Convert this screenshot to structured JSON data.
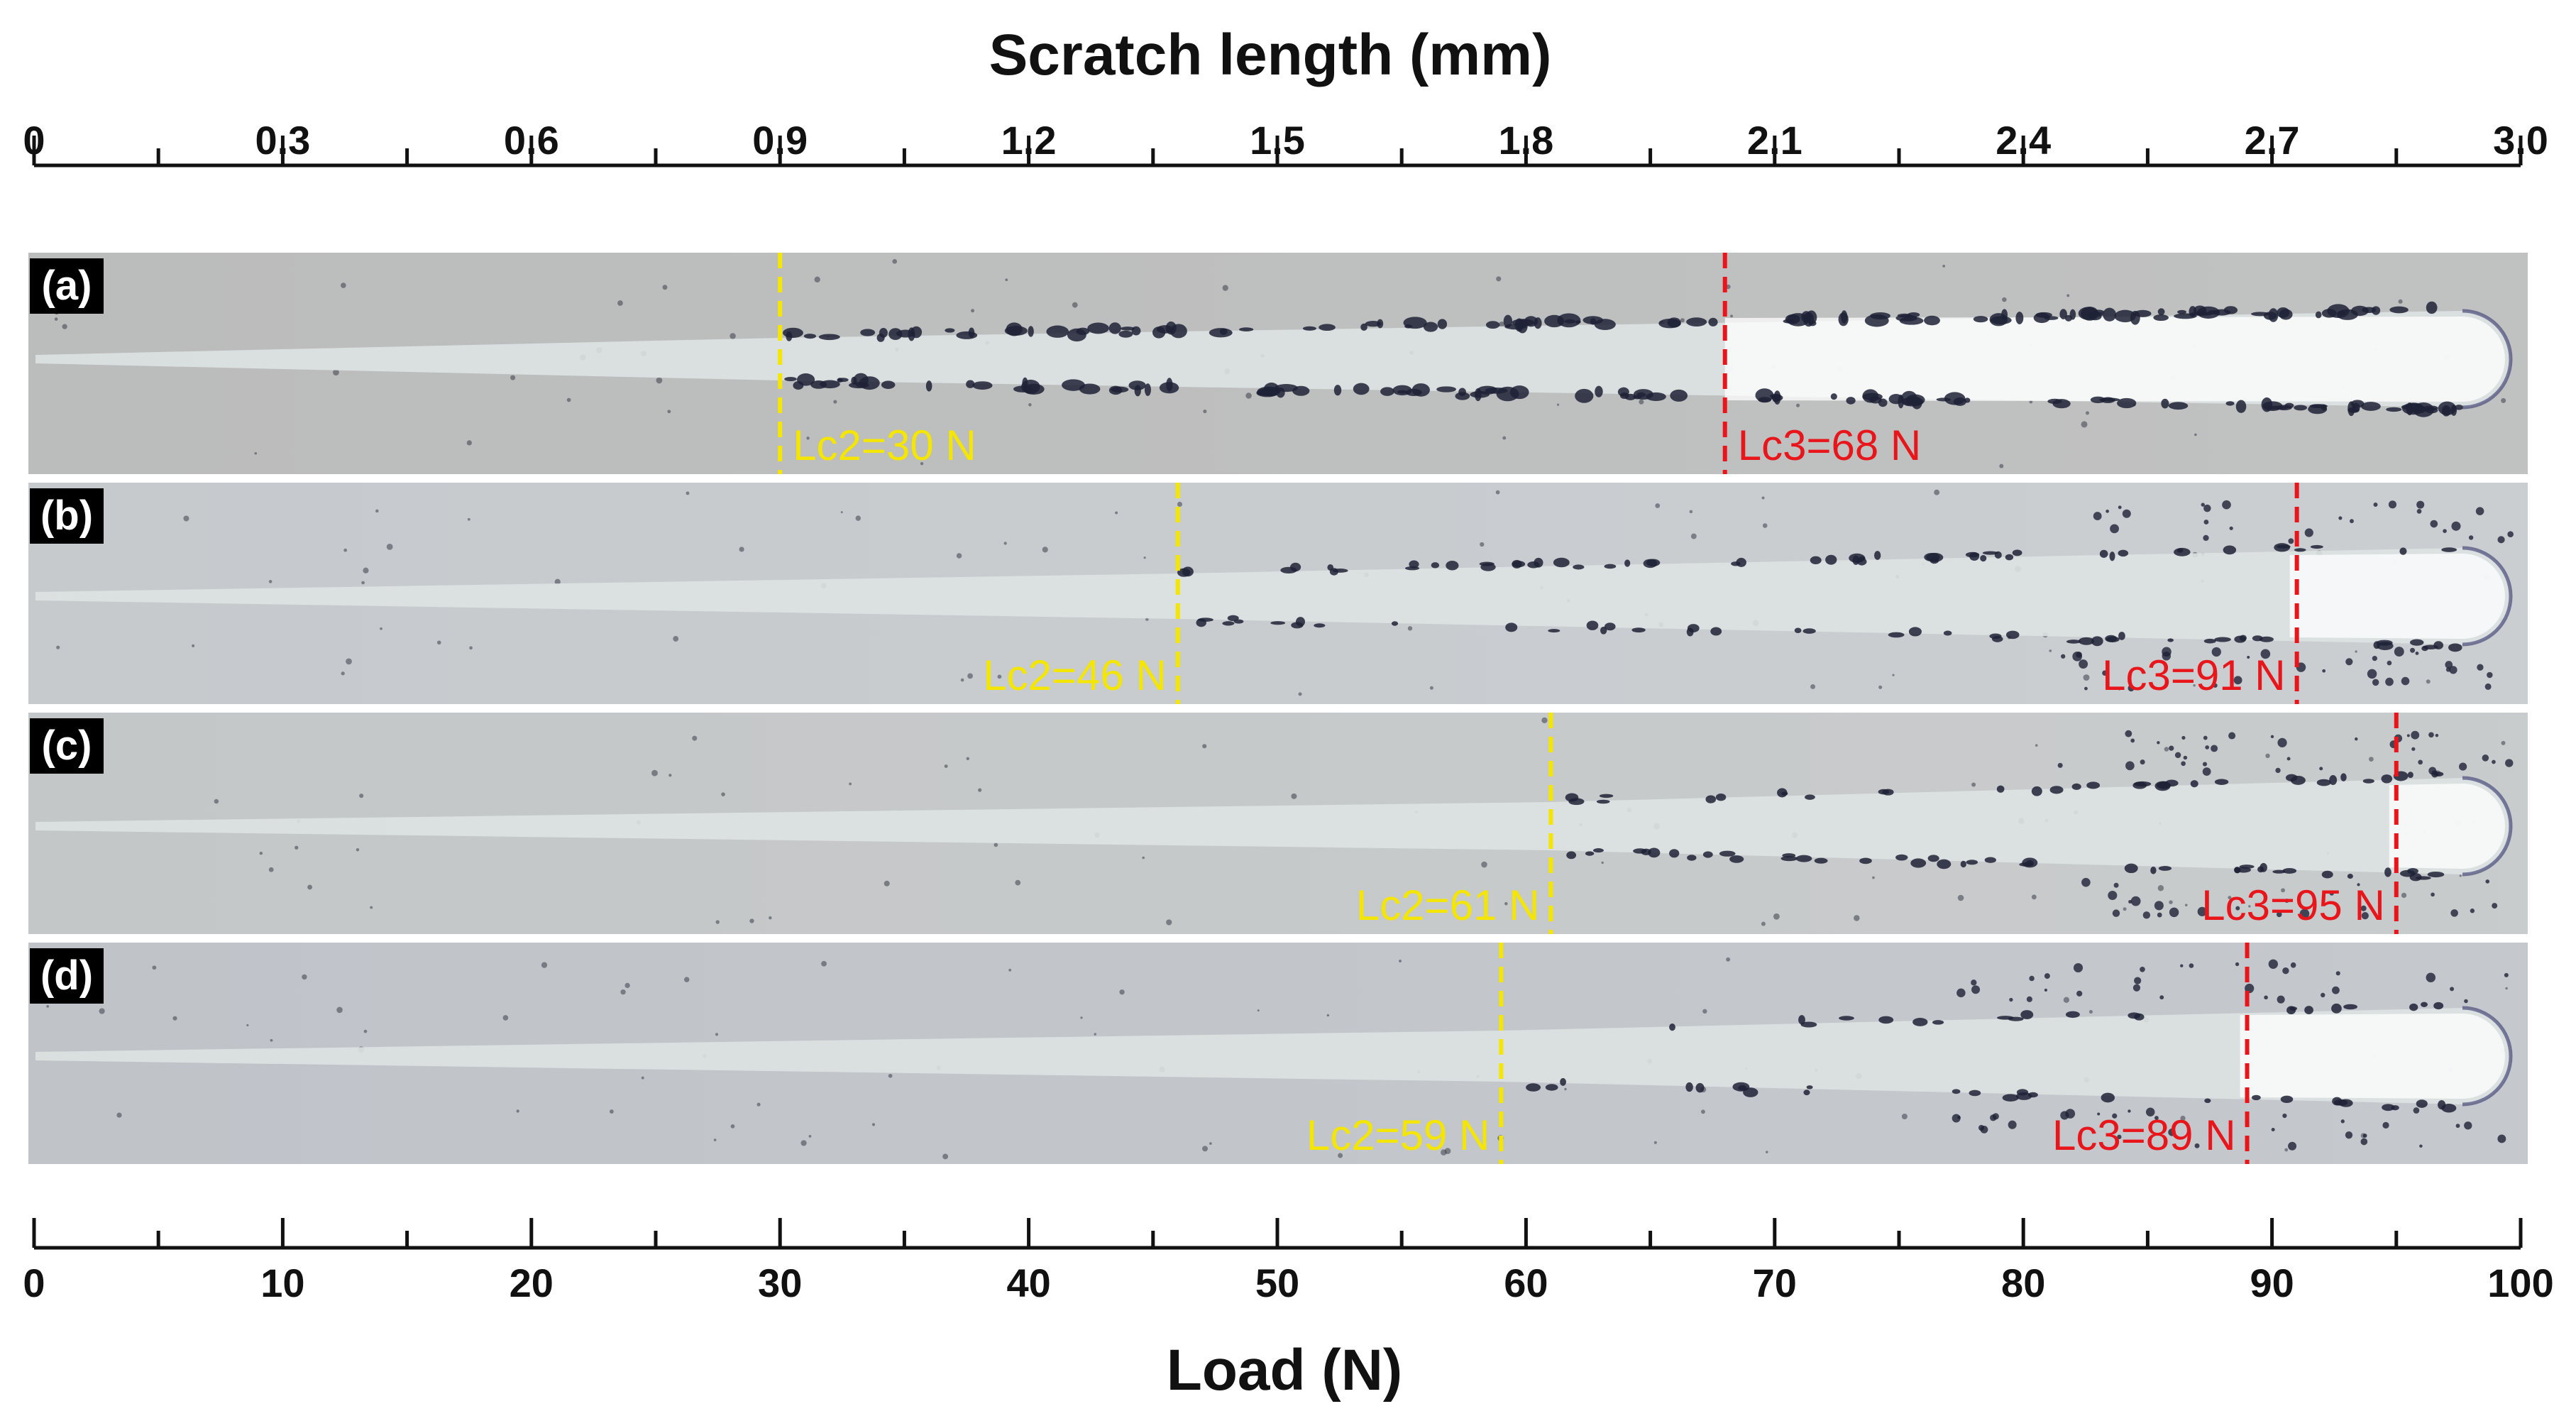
{
  "top_axis": {
    "title": "Scratch length (mm)",
    "min": 0,
    "max": 3.0,
    "ticks": [
      "0",
      "0.3",
      "0.6",
      "0.9",
      "1.2",
      "1.5",
      "1.8",
      "2.1",
      "2.4",
      "2.7",
      "3.0"
    ]
  },
  "bottom_axis": {
    "title": "Load (N)",
    "min": 0,
    "max": 100,
    "ticks": [
      "0",
      "10",
      "20",
      "30",
      "40",
      "50",
      "60",
      "70",
      "80",
      "90",
      "100"
    ]
  },
  "colors": {
    "lc2": "#f5e600",
    "lc3": "#e8151b",
    "substrate": "#c4c8cc",
    "track": "#dde2e2",
    "debris": "#1e2236"
  },
  "panels": [
    {
      "tag": "(a)",
      "lc2": 30,
      "lc3": 68,
      "lc2_label": "Lc2=30 N",
      "lc3_label": "Lc3=68 N",
      "lc2_side": "right",
      "lc3_side": "right",
      "substrate": "#bbbcbc"
    },
    {
      "tag": "(b)",
      "lc2": 46,
      "lc3": 91,
      "lc2_label": "Lc2=46 N",
      "lc3_label": "Lc3=91 N",
      "lc2_side": "left",
      "lc3_side": "left",
      "substrate": "#c6cacd"
    },
    {
      "tag": "(c)",
      "lc2": 61,
      "lc3": 95,
      "lc2_label": "Lc2=61 N",
      "lc3_label": "Lc3=95 N",
      "lc2_side": "left",
      "lc3_side": "left",
      "substrate": "#c4c7c8"
    },
    {
      "tag": "(d)",
      "lc2": 59,
      "lc3": 89,
      "lc2_label": "Lc2=59 N",
      "lc3_label": "Lc3=89 N",
      "lc2_side": "left",
      "lc3_side": "left",
      "substrate": "#c0c4c9"
    }
  ]
}
